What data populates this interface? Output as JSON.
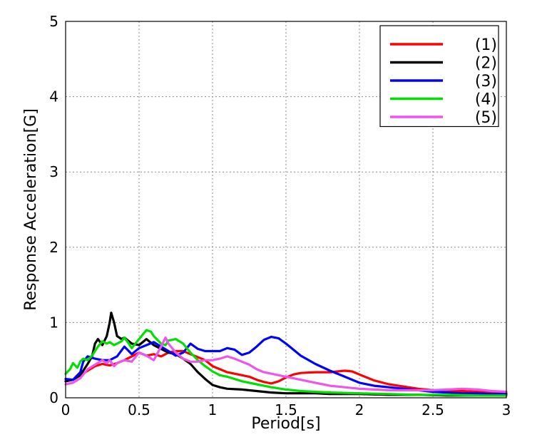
{
  "chart_data": {
    "type": "line",
    "title": "",
    "xlabel": "Period[s]",
    "ylabel": "Response Acceleration[G]",
    "xlim": [
      0,
      3
    ],
    "ylim": [
      0,
      5
    ],
    "x_ticks": [
      0,
      0.5,
      1,
      1.5,
      2,
      2.5,
      3
    ],
    "x_tick_labels": [
      "0",
      "0.5",
      "1",
      "1.5",
      "2",
      "2.5",
      "3"
    ],
    "y_ticks": [
      0,
      1,
      2,
      3,
      4,
      5
    ],
    "y_tick_labels": [
      "0",
      "1",
      "2",
      "3",
      "4",
      "5"
    ],
    "grid": true,
    "legend_position": "top-right",
    "series": [
      {
        "name": "(1)",
        "color": "#ff0000",
        "points": [
          [
            0,
            0.22
          ],
          [
            0.05,
            0.24
          ],
          [
            0.1,
            0.3
          ],
          [
            0.15,
            0.36
          ],
          [
            0.2,
            0.42
          ],
          [
            0.25,
            0.45
          ],
          [
            0.3,
            0.43
          ],
          [
            0.35,
            0.46
          ],
          [
            0.4,
            0.5
          ],
          [
            0.45,
            0.55
          ],
          [
            0.5,
            0.6
          ],
          [
            0.55,
            0.56
          ],
          [
            0.6,
            0.58
          ],
          [
            0.65,
            0.55
          ],
          [
            0.7,
            0.6
          ],
          [
            0.75,
            0.62
          ],
          [
            0.8,
            0.62
          ],
          [
            0.85,
            0.58
          ],
          [
            0.9,
            0.54
          ],
          [
            0.95,
            0.5
          ],
          [
            1.0,
            0.42
          ],
          [
            1.05,
            0.38
          ],
          [
            1.1,
            0.34
          ],
          [
            1.15,
            0.32
          ],
          [
            1.2,
            0.3
          ],
          [
            1.25,
            0.28
          ],
          [
            1.3,
            0.24
          ],
          [
            1.35,
            0.21
          ],
          [
            1.4,
            0.19
          ],
          [
            1.45,
            0.22
          ],
          [
            1.5,
            0.27
          ],
          [
            1.55,
            0.31
          ],
          [
            1.6,
            0.33
          ],
          [
            1.7,
            0.34
          ],
          [
            1.8,
            0.34
          ],
          [
            1.85,
            0.35
          ],
          [
            1.9,
            0.36
          ],
          [
            1.95,
            0.35
          ],
          [
            2.0,
            0.31
          ],
          [
            2.05,
            0.27
          ],
          [
            2.1,
            0.23
          ],
          [
            2.2,
            0.18
          ],
          [
            2.3,
            0.15
          ],
          [
            2.4,
            0.12
          ],
          [
            2.5,
            0.1
          ],
          [
            2.6,
            0.09
          ],
          [
            2.7,
            0.09
          ],
          [
            2.8,
            0.08
          ],
          [
            2.9,
            0.08
          ],
          [
            3.0,
            0.07
          ]
        ]
      },
      {
        "name": "(2)",
        "color": "#000000",
        "points": [
          [
            0,
            0.22
          ],
          [
            0.05,
            0.24
          ],
          [
            0.1,
            0.3
          ],
          [
            0.15,
            0.45
          ],
          [
            0.18,
            0.55
          ],
          [
            0.2,
            0.72
          ],
          [
            0.22,
            0.78
          ],
          [
            0.25,
            0.7
          ],
          [
            0.28,
            0.82
          ],
          [
            0.3,
            1.0
          ],
          [
            0.31,
            1.13
          ],
          [
            0.33,
            1.0
          ],
          [
            0.35,
            0.82
          ],
          [
            0.38,
            0.78
          ],
          [
            0.4,
            0.8
          ],
          [
            0.45,
            0.72
          ],
          [
            0.5,
            0.7
          ],
          [
            0.55,
            0.78
          ],
          [
            0.6,
            0.7
          ],
          [
            0.65,
            0.65
          ],
          [
            0.7,
            0.6
          ],
          [
            0.75,
            0.58
          ],
          [
            0.8,
            0.52
          ],
          [
            0.85,
            0.45
          ],
          [
            0.9,
            0.34
          ],
          [
            0.95,
            0.25
          ],
          [
            1.0,
            0.17
          ],
          [
            1.05,
            0.14
          ],
          [
            1.1,
            0.12
          ],
          [
            1.2,
            0.11
          ],
          [
            1.3,
            0.09
          ],
          [
            1.4,
            0.07
          ],
          [
            1.5,
            0.06
          ],
          [
            1.6,
            0.06
          ],
          [
            1.7,
            0.06
          ],
          [
            1.8,
            0.05
          ],
          [
            1.9,
            0.05
          ],
          [
            2.0,
            0.05
          ],
          [
            2.2,
            0.04
          ],
          [
            2.4,
            0.04
          ],
          [
            2.6,
            0.03
          ],
          [
            2.8,
            0.03
          ],
          [
            3.0,
            0.03
          ]
        ]
      },
      {
        "name": "(3)",
        "color": "#0000ff",
        "points": [
          [
            0,
            0.25
          ],
          [
            0.05,
            0.24
          ],
          [
            0.1,
            0.34
          ],
          [
            0.12,
            0.48
          ],
          [
            0.15,
            0.55
          ],
          [
            0.2,
            0.52
          ],
          [
            0.25,
            0.5
          ],
          [
            0.3,
            0.5
          ],
          [
            0.35,
            0.55
          ],
          [
            0.4,
            0.68
          ],
          [
            0.43,
            0.62
          ],
          [
            0.45,
            0.58
          ],
          [
            0.5,
            0.66
          ],
          [
            0.55,
            0.7
          ],
          [
            0.6,
            0.74
          ],
          [
            0.65,
            0.68
          ],
          [
            0.7,
            0.62
          ],
          [
            0.75,
            0.56
          ],
          [
            0.8,
            0.6
          ],
          [
            0.85,
            0.72
          ],
          [
            0.9,
            0.65
          ],
          [
            0.95,
            0.62
          ],
          [
            1.0,
            0.62
          ],
          [
            1.05,
            0.62
          ],
          [
            1.1,
            0.66
          ],
          [
            1.15,
            0.64
          ],
          [
            1.2,
            0.57
          ],
          [
            1.25,
            0.6
          ],
          [
            1.3,
            0.68
          ],
          [
            1.35,
            0.77
          ],
          [
            1.4,
            0.81
          ],
          [
            1.45,
            0.79
          ],
          [
            1.5,
            0.72
          ],
          [
            1.55,
            0.64
          ],
          [
            1.6,
            0.56
          ],
          [
            1.7,
            0.45
          ],
          [
            1.8,
            0.36
          ],
          [
            1.9,
            0.28
          ],
          [
            2.0,
            0.2
          ],
          [
            2.1,
            0.16
          ],
          [
            2.2,
            0.14
          ],
          [
            2.3,
            0.12
          ],
          [
            2.4,
            0.1
          ],
          [
            2.5,
            0.08
          ],
          [
            2.6,
            0.07
          ],
          [
            2.7,
            0.06
          ],
          [
            2.8,
            0.06
          ],
          [
            2.9,
            0.05
          ],
          [
            3.0,
            0.05
          ]
        ]
      },
      {
        "name": "(4)",
        "color": "#00e000",
        "points": [
          [
            0,
            0.32
          ],
          [
            0.03,
            0.38
          ],
          [
            0.05,
            0.46
          ],
          [
            0.08,
            0.4
          ],
          [
            0.1,
            0.48
          ],
          [
            0.12,
            0.52
          ],
          [
            0.15,
            0.5
          ],
          [
            0.18,
            0.56
          ],
          [
            0.2,
            0.62
          ],
          [
            0.22,
            0.68
          ],
          [
            0.25,
            0.75
          ],
          [
            0.28,
            0.72
          ],
          [
            0.3,
            0.74
          ],
          [
            0.33,
            0.7
          ],
          [
            0.35,
            0.72
          ],
          [
            0.38,
            0.75
          ],
          [
            0.4,
            0.8
          ],
          [
            0.43,
            0.72
          ],
          [
            0.45,
            0.66
          ],
          [
            0.5,
            0.78
          ],
          [
            0.55,
            0.9
          ],
          [
            0.58,
            0.88
          ],
          [
            0.6,
            0.82
          ],
          [
            0.65,
            0.72
          ],
          [
            0.68,
            0.7
          ],
          [
            0.7,
            0.76
          ],
          [
            0.75,
            0.78
          ],
          [
            0.8,
            0.72
          ],
          [
            0.85,
            0.6
          ],
          [
            0.9,
            0.5
          ],
          [
            0.95,
            0.42
          ],
          [
            1.0,
            0.35
          ],
          [
            1.05,
            0.3
          ],
          [
            1.1,
            0.28
          ],
          [
            1.2,
            0.22
          ],
          [
            1.3,
            0.18
          ],
          [
            1.4,
            0.14
          ],
          [
            1.5,
            0.11
          ],
          [
            1.6,
            0.09
          ],
          [
            1.7,
            0.08
          ],
          [
            1.8,
            0.07
          ],
          [
            2.0,
            0.06
          ],
          [
            2.2,
            0.05
          ],
          [
            2.4,
            0.04
          ],
          [
            2.6,
            0.04
          ],
          [
            2.8,
            0.03
          ],
          [
            3.0,
            0.03
          ]
        ]
      },
      {
        "name": "(5)",
        "color": "#ee55ee",
        "points": [
          [
            0,
            0.18
          ],
          [
            0.05,
            0.2
          ],
          [
            0.1,
            0.26
          ],
          [
            0.15,
            0.38
          ],
          [
            0.2,
            0.44
          ],
          [
            0.25,
            0.5
          ],
          [
            0.28,
            0.46
          ],
          [
            0.3,
            0.5
          ],
          [
            0.33,
            0.42
          ],
          [
            0.35,
            0.46
          ],
          [
            0.4,
            0.5
          ],
          [
            0.45,
            0.48
          ],
          [
            0.5,
            0.6
          ],
          [
            0.55,
            0.56
          ],
          [
            0.6,
            0.5
          ],
          [
            0.65,
            0.68
          ],
          [
            0.68,
            0.8
          ],
          [
            0.7,
            0.72
          ],
          [
            0.75,
            0.6
          ],
          [
            0.8,
            0.52
          ],
          [
            0.85,
            0.48
          ],
          [
            0.9,
            0.48
          ],
          [
            0.95,
            0.5
          ],
          [
            1.0,
            0.5
          ],
          [
            1.05,
            0.52
          ],
          [
            1.1,
            0.55
          ],
          [
            1.15,
            0.52
          ],
          [
            1.2,
            0.48
          ],
          [
            1.25,
            0.44
          ],
          [
            1.3,
            0.38
          ],
          [
            1.35,
            0.34
          ],
          [
            1.4,
            0.32
          ],
          [
            1.5,
            0.28
          ],
          [
            1.6,
            0.24
          ],
          [
            1.7,
            0.2
          ],
          [
            1.8,
            0.16
          ],
          [
            1.9,
            0.14
          ],
          [
            2.0,
            0.12
          ],
          [
            2.1,
            0.11
          ],
          [
            2.2,
            0.1
          ],
          [
            2.3,
            0.1
          ],
          [
            2.4,
            0.1
          ],
          [
            2.5,
            0.1
          ],
          [
            2.6,
            0.11
          ],
          [
            2.7,
            0.12
          ],
          [
            2.8,
            0.11
          ],
          [
            2.9,
            0.09
          ],
          [
            3.0,
            0.08
          ]
        ]
      }
    ]
  }
}
